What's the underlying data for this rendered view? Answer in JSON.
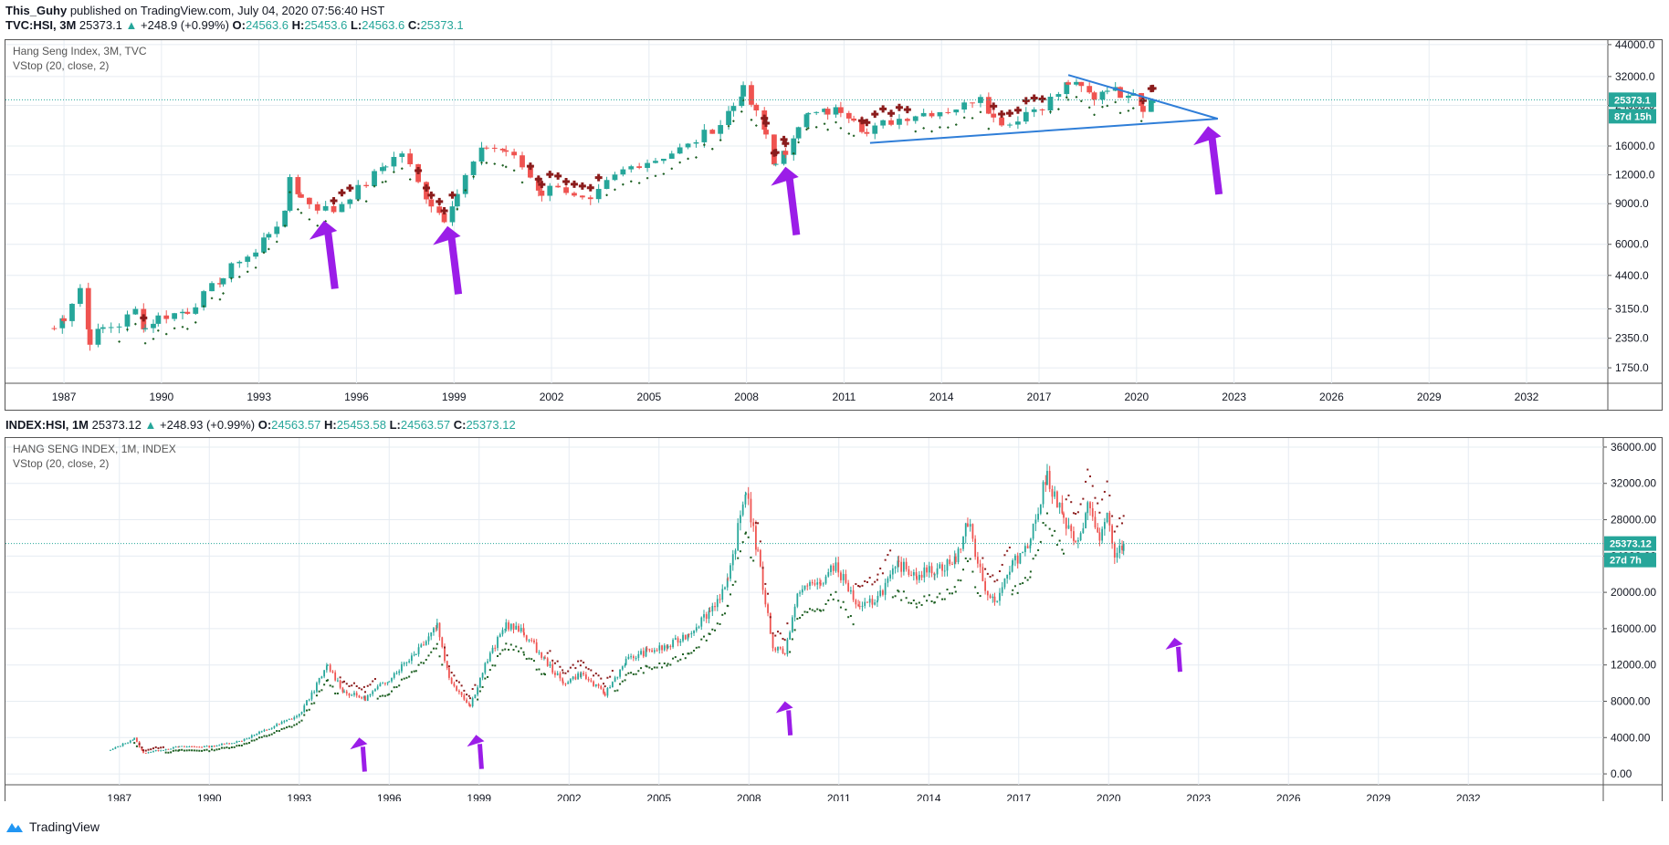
{
  "publish": {
    "author": "This_Guhy",
    "text": "published on TradingView.com, July 04, 2020 07:56:40 HST"
  },
  "pane1": {
    "symbol": "TVC:HSI, 3M",
    "ohlc": {
      "last": "25373.1",
      "change": "+248.9 (+0.99%)",
      "o_label": "O:",
      "o": "24563.6",
      "h_label": "H:",
      "h": "25453.6",
      "l_label": "L:",
      "l": "24563.6",
      "c_label": "C:",
      "c": "25373.1"
    },
    "title": "Hang Seng Index, 3M, TVC",
    "indicator": "VStop (20, close, 2)",
    "price_tag": "25373.1",
    "countdown": "87d 15h"
  },
  "pane2": {
    "symbol": "INDEX:HSI, 1M",
    "ohlc": {
      "last": "25373.12",
      "change": "+248.93 (+0.99%)",
      "o_label": "O:",
      "o": "24563.57",
      "h_label": "H:",
      "h": "25453.58",
      "l_label": "L:",
      "l": "24563.57",
      "c_label": "C:",
      "c": "25373.12"
    },
    "title": "HANG SENG INDEX, 1M, INDEX",
    "indicator": "VStop (20, close, 2)",
    "price_tag": "25373.12",
    "countdown": "27d 7h"
  },
  "footer": {
    "brand": "TradingView"
  },
  "colors": {
    "up": "#26a69a",
    "down": "#ef5350",
    "stop_up": "#1b5e20",
    "stop_down": "#8b1c1c",
    "arrow": "#9b1de8",
    "trendline": "#2f7ed8",
    "grid": "#e6ecf2"
  },
  "chart_data": [
    {
      "type": "candlestick",
      "title": "Hang Seng Index, 3M, TVC",
      "scale": "log",
      "ylim": [
        1500,
        46000
      ],
      "xlim": [
        1985.2,
        2034.5
      ],
      "x_ticks": [
        "1987",
        "1990",
        "1993",
        "1996",
        "1999",
        "2002",
        "2005",
        "2008",
        "2011",
        "2014",
        "2017",
        "2020",
        "2023",
        "2026",
        "2029",
        "2032"
      ],
      "y_ticks": [
        "44000.0",
        "32000.0",
        "24000.0",
        "16000.0",
        "12000.0",
        "9000.0",
        "6000.0",
        "4400.0",
        "3150.0",
        "2350.0",
        "1750.0"
      ],
      "last_price": 25373.1,
      "series": [
        {
          "name": "Hang Seng Index",
          "points": [
            [
              1986.7,
              2600
            ],
            [
              1987.0,
              2900
            ],
            [
              1987.5,
              3900
            ],
            [
              1987.8,
              2300
            ],
            [
              1988.2,
              2600
            ],
            [
              1988.7,
              2700
            ],
            [
              1989.2,
              3100
            ],
            [
              1989.5,
              2600
            ],
            [
              1989.9,
              2900
            ],
            [
              1990.4,
              3000
            ],
            [
              1990.8,
              3100
            ],
            [
              1991.3,
              3600
            ],
            [
              1991.9,
              4300
            ],
            [
              1992.4,
              5200
            ],
            [
              1992.9,
              5500
            ],
            [
              1993.3,
              6800
            ],
            [
              1993.8,
              8000
            ],
            [
              1993.95,
              11800
            ],
            [
              1994.3,
              9500
            ],
            [
              1994.8,
              8700
            ],
            [
              1995.3,
              8400
            ],
            [
              1995.8,
              9800
            ],
            [
              1996.3,
              11000
            ],
            [
              1996.9,
              13400
            ],
            [
              1997.4,
              15000
            ],
            [
              1997.9,
              11000
            ],
            [
              1998.3,
              9000
            ],
            [
              1998.7,
              7800
            ],
            [
              1999.1,
              10000
            ],
            [
              1999.6,
              13500
            ],
            [
              2000.0,
              16000
            ],
            [
              2000.6,
              15200
            ],
            [
              2001.1,
              13000
            ],
            [
              2001.7,
              10000
            ],
            [
              2002.2,
              11000
            ],
            [
              2002.7,
              9500
            ],
            [
              2003.2,
              9000
            ],
            [
              2003.7,
              11000
            ],
            [
              2004.2,
              12500
            ],
            [
              2004.7,
              13500
            ],
            [
              2005.2,
              14000
            ],
            [
              2005.7,
              15000
            ],
            [
              2006.2,
              16000
            ],
            [
              2006.7,
              18000
            ],
            [
              2007.2,
              20000
            ],
            [
              2007.6,
              24000
            ],
            [
              2007.9,
              28000
            ],
            [
              2008.3,
              22000
            ],
            [
              2008.6,
              18000
            ],
            [
              2008.9,
              13000
            ],
            [
              2009.2,
              15000
            ],
            [
              2009.6,
              20000
            ],
            [
              2009.9,
              21800
            ],
            [
              2010.5,
              22500
            ],
            [
              2010.9,
              23000
            ],
            [
              2011.3,
              21500
            ],
            [
              2011.7,
              18000
            ],
            [
              2012.2,
              20000
            ],
            [
              2012.7,
              21000
            ],
            [
              2013.2,
              22000
            ],
            [
              2013.7,
              22500
            ],
            [
              2014.2,
              23000
            ],
            [
              2014.7,
              24000
            ],
            [
              2015.2,
              27000
            ],
            [
              2015.6,
              21000
            ],
            [
              2016.1,
              20000
            ],
            [
              2016.6,
              22500
            ],
            [
              2017.1,
              24000
            ],
            [
              2017.6,
              27000
            ],
            [
              2017.9,
              30000
            ],
            [
              2018.3,
              28500
            ],
            [
              2018.7,
              26000
            ],
            [
              2019.1,
              29000
            ],
            [
              2019.5,
              27000
            ],
            [
              2019.9,
              28000
            ],
            [
              2020.2,
              23600
            ],
            [
              2020.5,
              25373
            ]
          ]
        },
        {
          "name": "VStop (20, close, 2)",
          "kind": "stop_markers"
        }
      ],
      "annotations": [
        {
          "type": "arrow",
          "target_year": 1995.0,
          "target_price": 7600
        },
        {
          "type": "arrow",
          "target_year": 1998.8,
          "target_price": 7200
        },
        {
          "type": "arrow",
          "target_year": 2009.2,
          "target_price": 13000
        },
        {
          "type": "arrow",
          "target_year": 2022.2,
          "target_price": 19500
        },
        {
          "type": "trendline",
          "points": [
            [
              2017.9,
              32500
            ],
            [
              2022.5,
              21000
            ]
          ]
        },
        {
          "type": "trendline",
          "points": [
            [
              2011.8,
              16500
            ],
            [
              2022.5,
              21000
            ]
          ]
        }
      ]
    },
    {
      "type": "candlestick",
      "title": "HANG SENG INDEX, 1M, INDEX",
      "scale": "linear",
      "ylim": [
        -1200,
        37000
      ],
      "xlim": [
        1983.2,
        2036.5
      ],
      "x_ticks": [
        "1987",
        "1990",
        "1993",
        "1996",
        "1999",
        "2002",
        "2005",
        "2008",
        "2011",
        "2014",
        "2017",
        "2020",
        "2023",
        "2026",
        "2029",
        "2032"
      ],
      "y_ticks": [
        "36000.00",
        "32000.00",
        "28000.00",
        "24000.00",
        "20000.00",
        "16000.00",
        "12000.00",
        "8000.00",
        "4000.00",
        "0.00"
      ],
      "last_price": 25373.12,
      "series": [
        {
          "name": "Hang Seng Index",
          "points": [
            [
              1986.7,
              2600
            ],
            [
              1987.5,
              3900
            ],
            [
              1987.8,
              2300
            ],
            [
              1989.0,
              3000
            ],
            [
              1990.0,
              3000
            ],
            [
              1991.0,
              3600
            ],
            [
              1992.0,
              5000
            ],
            [
              1993.0,
              6500
            ],
            [
              1993.95,
              11900
            ],
            [
              1994.5,
              9000
            ],
            [
              1995.2,
              8300
            ],
            [
              1996.0,
              10500
            ],
            [
              1996.9,
              13500
            ],
            [
              1997.6,
              16500
            ],
            [
              1998.0,
              10500
            ],
            [
              1998.7,
              7500
            ],
            [
              1999.2,
              12000
            ],
            [
              1999.9,
              16500
            ],
            [
              2000.5,
              15500
            ],
            [
              2001.2,
              12500
            ],
            [
              2001.8,
              10000
            ],
            [
              2002.4,
              11000
            ],
            [
              2003.2,
              8800
            ],
            [
              2003.9,
              12500
            ],
            [
              2004.6,
              13500
            ],
            [
              2005.3,
              14000
            ],
            [
              2006.0,
              15500
            ],
            [
              2006.7,
              18000
            ],
            [
              2007.3,
              21000
            ],
            [
              2007.9,
              31500
            ],
            [
              2008.3,
              24000
            ],
            [
              2008.8,
              14000
            ],
            [
              2009.2,
              13500
            ],
            [
              2009.7,
              20500
            ],
            [
              2010.4,
              21000
            ],
            [
              2010.9,
              23000
            ],
            [
              2011.7,
              18000
            ],
            [
              2012.3,
              19500
            ],
            [
              2013.0,
              23000
            ],
            [
              2013.6,
              22000
            ],
            [
              2014.2,
              22500
            ],
            [
              2014.9,
              23500
            ],
            [
              2015.3,
              28000
            ],
            [
              2015.8,
              21000
            ],
            [
              2016.2,
              19000
            ],
            [
              2016.8,
              23000
            ],
            [
              2017.4,
              26000
            ],
            [
              2017.95,
              32900
            ],
            [
              2018.5,
              28000
            ],
            [
              2018.9,
              25000
            ],
            [
              2019.3,
              29500
            ],
            [
              2019.7,
              26000
            ],
            [
              2019.95,
              28200
            ],
            [
              2020.2,
              23600
            ],
            [
              2020.5,
              25373
            ]
          ]
        },
        {
          "name": "VStop (20, close, 2)",
          "kind": "stop_markers"
        }
      ],
      "annotations": [
        {
          "type": "arrow",
          "target_year": 1995.0,
          "target_price": 4000
        },
        {
          "type": "arrow",
          "target_year": 1998.9,
          "target_price": 4300
        },
        {
          "type": "arrow",
          "target_year": 2009.2,
          "target_price": 8000
        },
        {
          "type": "arrow",
          "target_year": 2022.2,
          "target_price": 15000
        }
      ]
    }
  ]
}
